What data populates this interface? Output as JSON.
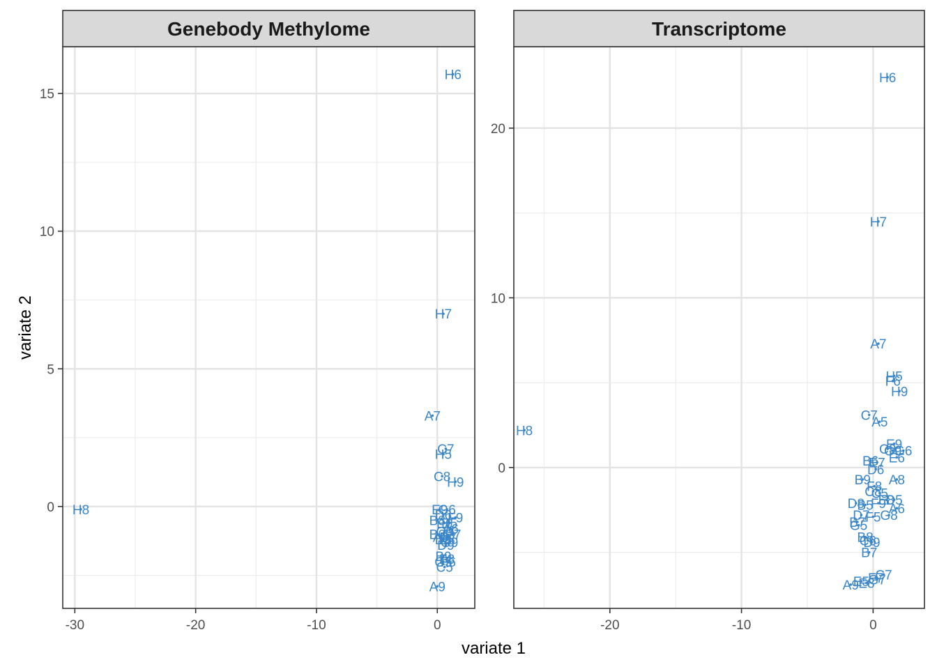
{
  "chart_data": {
    "type": "scatter",
    "xlabel": "variate 1",
    "ylabel": "variate 2",
    "grid": true,
    "label_color": "#3a86c8",
    "panels": [
      {
        "title": "Genebody Methylome",
        "xlim": [
          -31,
          3.1
        ],
        "ylim": [
          -3.7,
          16.7
        ],
        "x_ticks": [
          -30,
          -20,
          -10,
          0
        ],
        "y_ticks": [
          0,
          5,
          10,
          15
        ],
        "points": [
          {
            "label": "H6",
            "x": 1.3,
            "y": 15.7
          },
          {
            "label": "H7",
            "x": 0.5,
            "y": 7.0
          },
          {
            "label": "A7",
            "x": -0.4,
            "y": 3.3
          },
          {
            "label": "C7",
            "x": 0.7,
            "y": 2.1
          },
          {
            "label": "H5",
            "x": 0.5,
            "y": 1.9
          },
          {
            "label": "C8",
            "x": 0.4,
            "y": 1.1
          },
          {
            "label": "H9",
            "x": 1.5,
            "y": 0.9
          },
          {
            "label": "H8",
            "x": -29.5,
            "y": -0.1
          },
          {
            "label": "E9",
            "x": 0.2,
            "y": -0.1
          },
          {
            "label": "G6",
            "x": 0.8,
            "y": -0.1
          },
          {
            "label": "D6",
            "x": 0.5,
            "y": -0.3
          },
          {
            "label": "F9",
            "x": 1.5,
            "y": -0.4
          },
          {
            "label": "B8",
            "x": 0.0,
            "y": -0.5
          },
          {
            "label": "E6",
            "x": 0.6,
            "y": -0.6
          },
          {
            "label": "B5",
            "x": 1.0,
            "y": -0.6
          },
          {
            "label": "A6",
            "x": 1.1,
            "y": -0.8
          },
          {
            "label": "C9",
            "x": 0.6,
            "y": -0.9
          },
          {
            "label": "E7",
            "x": 1.3,
            "y": -1.0
          },
          {
            "label": "B6",
            "x": 0.0,
            "y": -1.0
          },
          {
            "label": "D7",
            "x": 0.9,
            "y": -1.1
          },
          {
            "label": "A8",
            "x": 0.3,
            "y": -1.1
          },
          {
            "label": "E8",
            "x": 0.8,
            "y": -1.2
          },
          {
            "label": "G9",
            "x": 1.0,
            "y": -1.3
          },
          {
            "label": "D9",
            "x": 0.7,
            "y": -1.4
          },
          {
            "label": "D8",
            "x": 0.5,
            "y": -1.2
          },
          {
            "label": "B9",
            "x": 0.5,
            "y": -1.8
          },
          {
            "label": "F8",
            "x": 0.8,
            "y": -1.9
          },
          {
            "label": "F6",
            "x": 0.9,
            "y": -2.0
          },
          {
            "label": "G5",
            "x": 0.5,
            "y": -2.0
          },
          {
            "label": "C5",
            "x": 0.6,
            "y": -2.2
          },
          {
            "label": "A9",
            "x": 0.0,
            "y": -2.9
          }
        ]
      },
      {
        "title": "Transcriptome",
        "xlim": [
          -27.3,
          3.9
        ],
        "ylim": [
          -8.3,
          24.8
        ],
        "x_ticks": [
          -20,
          -10,
          0
        ],
        "y_ticks": [
          0,
          10,
          20
        ],
        "points": [
          {
            "label": "H6",
            "x": 1.1,
            "y": 23.0
          },
          {
            "label": "H7",
            "x": 0.4,
            "y": 14.5
          },
          {
            "label": "A7",
            "x": 0.4,
            "y": 7.3
          },
          {
            "label": "H5",
            "x": 1.6,
            "y": 5.4
          },
          {
            "label": "F6",
            "x": 1.5,
            "y": 5.1
          },
          {
            "label": "H9",
            "x": 2.0,
            "y": 4.5
          },
          {
            "label": "H8",
            "x": -26.5,
            "y": 2.2
          },
          {
            "label": "C7",
            "x": -0.3,
            "y": 3.1
          },
          {
            "label": "A5",
            "x": 0.5,
            "y": 2.7
          },
          {
            "label": "E9",
            "x": 1.6,
            "y": 1.4
          },
          {
            "label": "G6",
            "x": 2.3,
            "y": 1.0
          },
          {
            "label": "C9",
            "x": 1.1,
            "y": 1.1
          },
          {
            "label": "G9",
            "x": 1.5,
            "y": 1.0
          },
          {
            "label": "E6",
            "x": 1.8,
            "y": 0.6
          },
          {
            "label": "B6",
            "x": -0.2,
            "y": 0.4
          },
          {
            "label": "E7",
            "x": 0.3,
            "y": 0.3
          },
          {
            "label": "D6",
            "x": 0.2,
            "y": -0.1
          },
          {
            "label": "B9",
            "x": -0.8,
            "y": -0.7
          },
          {
            "label": "A8",
            "x": 1.8,
            "y": -0.7
          },
          {
            "label": "F8",
            "x": 0.1,
            "y": -1.1
          },
          {
            "label": "C8",
            "x": 0.0,
            "y": -1.4
          },
          {
            "label": "C5",
            "x": 0.5,
            "y": -1.5
          },
          {
            "label": "E8",
            "x": 1.0,
            "y": -1.9
          },
          {
            "label": "F9",
            "x": 0.4,
            "y": -2.1
          },
          {
            "label": "D5",
            "x": 1.6,
            "y": -1.9
          },
          {
            "label": "D8",
            "x": -1.3,
            "y": -2.1
          },
          {
            "label": "B5",
            "x": -0.6,
            "y": -2.2
          },
          {
            "label": "A6",
            "x": 1.8,
            "y": -2.4
          },
          {
            "label": "D7",
            "x": -0.9,
            "y": -2.8
          },
          {
            "label": "F5",
            "x": 0.0,
            "y": -2.9
          },
          {
            "label": "G8",
            "x": 1.2,
            "y": -2.8
          },
          {
            "label": "B7",
            "x": -1.2,
            "y": -3.2
          },
          {
            "label": "G5",
            "x": -1.1,
            "y": -3.4
          },
          {
            "label": "B8",
            "x": -0.6,
            "y": -4.1
          },
          {
            "label": "C6",
            "x": -0.4,
            "y": -4.3
          },
          {
            "label": "D9",
            "x": -0.1,
            "y": -4.4
          },
          {
            "label": "B7b",
            "x": -0.3,
            "y": -5.0
          },
          {
            "label": "C7b",
            "x": 0.8,
            "y": -6.3
          },
          {
            "label": "F7",
            "x": 0.2,
            "y": -6.5
          },
          {
            "label": "G7",
            "x": 0.3,
            "y": -6.6
          },
          {
            "label": "A9",
            "x": -1.7,
            "y": -6.9
          },
          {
            "label": "E5",
            "x": -0.9,
            "y": -6.7
          },
          {
            "label": "E8b",
            "x": -0.5,
            "y": -6.8
          }
        ]
      }
    ]
  }
}
